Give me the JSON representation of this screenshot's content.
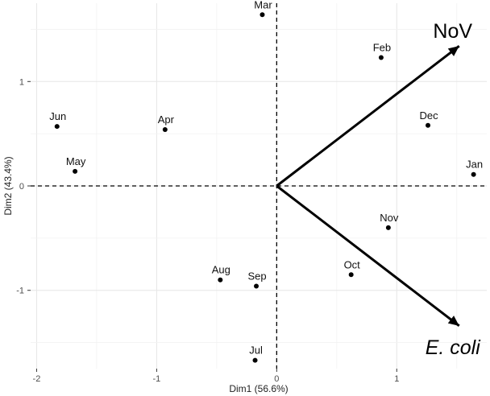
{
  "chart_data": {
    "type": "scatter",
    "title": "",
    "xlabel": "Dim1 (56.6%)",
    "ylabel": "Dim2 (43.4%)",
    "xlim": [
      -2.05,
      1.75
    ],
    "ylim": [
      -1.75,
      1.75
    ],
    "xticks": [
      -2,
      -1,
      0,
      1
    ],
    "yticks": [
      -1,
      0,
      1
    ],
    "grid": true,
    "points": [
      {
        "label": "Jan",
        "x": 1.64,
        "y": 0.11
      },
      {
        "label": "Feb",
        "x": 0.87,
        "y": 1.23
      },
      {
        "label": "Mar",
        "x": -0.12,
        "y": 1.64
      },
      {
        "label": "Apr",
        "x": -0.93,
        "y": 0.54
      },
      {
        "label": "May",
        "x": -1.68,
        "y": 0.14
      },
      {
        "label": "Jun",
        "x": -1.83,
        "y": 0.57
      },
      {
        "label": "Jul",
        "x": -0.18,
        "y": -1.67
      },
      {
        "label": "Aug",
        "x": -0.47,
        "y": -0.9
      },
      {
        "label": "Sep",
        "x": -0.17,
        "y": -0.96
      },
      {
        "label": "Oct",
        "x": 0.62,
        "y": -0.85
      },
      {
        "label": "Nov",
        "x": 0.93,
        "y": -0.4
      },
      {
        "label": "Dec",
        "x": 1.26,
        "y": 0.58
      }
    ],
    "vectors": [
      {
        "label": "NoV",
        "italic": false,
        "x": 1.52,
        "y": 1.34
      },
      {
        "label": "E. coli",
        "italic": true,
        "x": 1.52,
        "y": -1.34
      }
    ],
    "reference_lines": {
      "x": 0,
      "y": 0,
      "style": "dashed"
    }
  }
}
